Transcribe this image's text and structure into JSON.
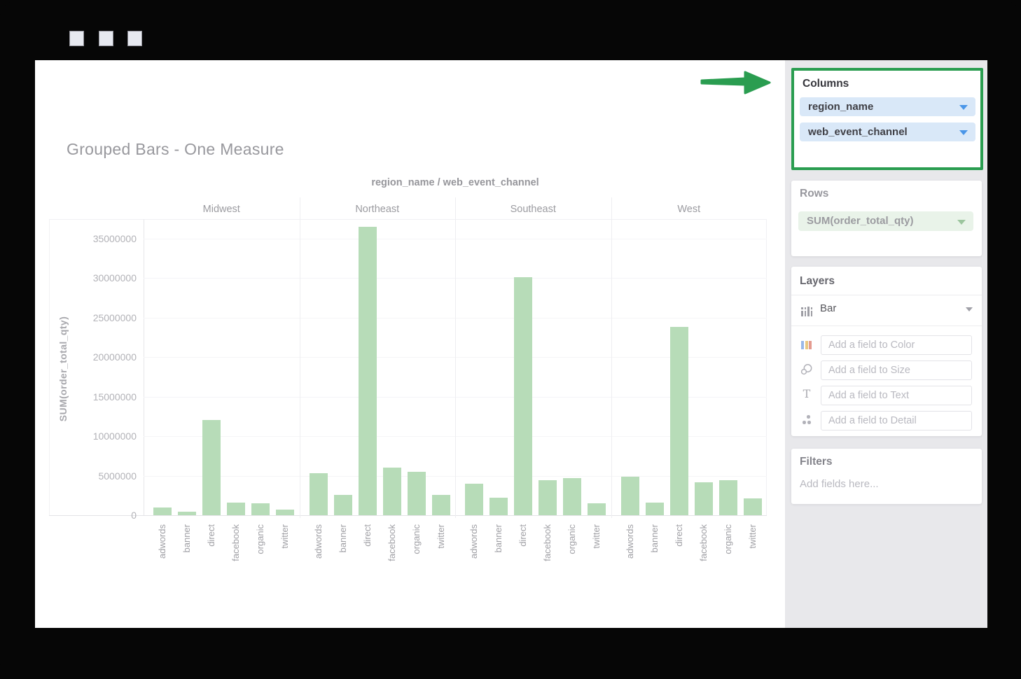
{
  "window": {
    "titlebar_square_count": 3
  },
  "annotation": {
    "arrow_color": "#2a9d50",
    "highlight_border_color": "#2a9d50"
  },
  "sidebar": {
    "columns": {
      "title": "Columns",
      "fields": [
        "region_name",
        "web_event_channel"
      ],
      "pill_bg": "#d9e8f8",
      "chevron_color": "#4a96e8"
    },
    "rows": {
      "title": "Rows",
      "fields": [
        "SUM(order_total_qty)"
      ],
      "pill_bg": "#e9f3e9",
      "chevron_color": "#9cc59e"
    },
    "layers": {
      "title": "Layers",
      "layer_type": "Bar",
      "drop_zones": [
        {
          "icon": "color-bars-icon",
          "placeholder": "Add a field to Color"
        },
        {
          "icon": "size-circles-icon",
          "placeholder": "Add a field to Size"
        },
        {
          "icon": "text-icon",
          "placeholder": "Add a field to Text"
        },
        {
          "icon": "detail-dots-icon",
          "placeholder": "Add a field to Detail"
        }
      ]
    },
    "filters": {
      "title": "Filters",
      "placeholder": "Add fields here..."
    }
  },
  "chart_data": {
    "type": "bar",
    "title": "Grouped Bars - One Measure",
    "facet_header": "region_name / web_event_channel",
    "ylabel": "SUM(order_total_qty)",
    "xlabel": "",
    "bar_color": "#b7dcb8",
    "grid": true,
    "legend": false,
    "categories": [
      "adwords",
      "banner",
      "direct",
      "facebook",
      "organic",
      "twitter"
    ],
    "groups": [
      {
        "name": "Midwest",
        "values": [
          1000000,
          400000,
          12000000,
          1600000,
          1500000,
          700000
        ]
      },
      {
        "name": "Northeast",
        "values": [
          5300000,
          2600000,
          36500000,
          6000000,
          5500000,
          2600000
        ]
      },
      {
        "name": "Southeast",
        "values": [
          4000000,
          2200000,
          30100000,
          4400000,
          4700000,
          1500000
        ]
      },
      {
        "name": "West",
        "values": [
          4900000,
          1600000,
          23800000,
          4200000,
          4400000,
          2100000
        ]
      }
    ],
    "yticks": [
      0,
      5000000,
      10000000,
      15000000,
      20000000,
      25000000,
      30000000,
      35000000
    ],
    "ylim": [
      0,
      37500000
    ]
  }
}
